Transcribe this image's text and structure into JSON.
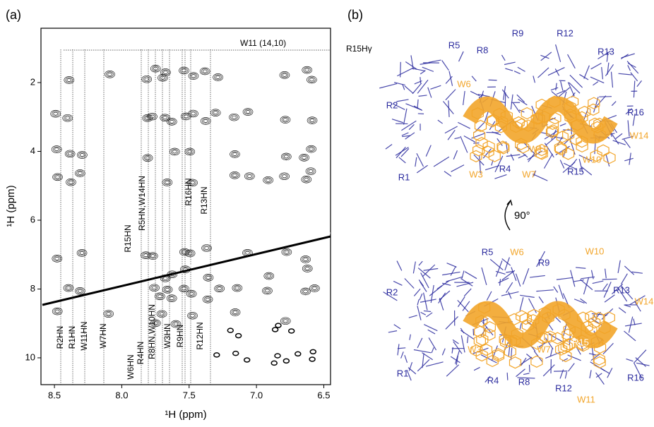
{
  "panel_a": {
    "label": "(a)",
    "x_axis_label": "¹H (ppm)",
    "y_axis_label": "¹H (ppm)",
    "xlim": [
      8.6,
      6.45
    ],
    "ylim": [
      0.42,
      10.78
    ],
    "xticks": [
      {
        "value": 8.5,
        "label": "8.5"
      },
      {
        "value": 8.0,
        "label": "8.0"
      },
      {
        "value": 7.5,
        "label": "7.5"
      },
      {
        "value": 7.0,
        "label": "7.0"
      },
      {
        "value": 6.5,
        "label": "6.5"
      }
    ],
    "yticks": [
      2,
      4,
      6,
      8,
      10
    ],
    "annotations": [
      "W11 (14,10)",
      "R15Hγ",
      "R2HN",
      "R1HN",
      "W11HN",
      "W7HN",
      "W6HN",
      "R4HN",
      "R8HN,W10HN",
      "W3HN",
      "R9HN",
      "R12HN",
      "R15HN",
      "R5HN,W14HN",
      "R16HN",
      "R13HN"
    ]
  },
  "panel_b": {
    "label": "(b)",
    "rotation": "90°",
    "top_view_labels": [
      "R5",
      "R9",
      "R12",
      "R8",
      "R13",
      "W6",
      "R2",
      "R16",
      "W11",
      "W14",
      "W10",
      "W3",
      "R4",
      "W7",
      "R15",
      "R1"
    ],
    "bottom_view_labels": [
      "R5",
      "W6",
      "R9",
      "W10",
      "R2",
      "R13",
      "W14",
      "R15",
      "W3",
      "W7",
      "R1",
      "R4",
      "R8",
      "R12",
      "R16",
      "W11"
    ]
  }
}
